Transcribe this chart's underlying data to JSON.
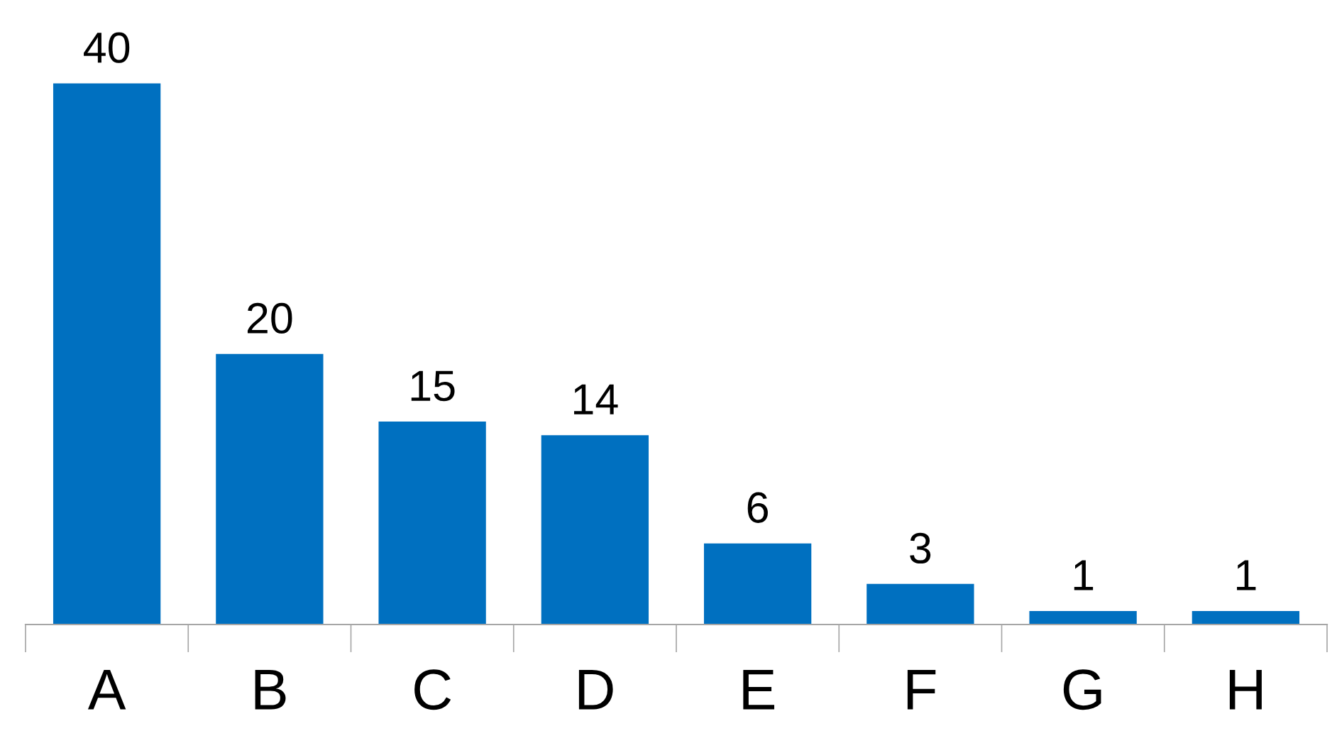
{
  "chart_data": {
    "type": "bar",
    "categories": [
      "A",
      "B",
      "C",
      "D",
      "E",
      "F",
      "G",
      "H"
    ],
    "values": [
      40,
      20,
      15,
      14,
      6,
      3,
      1,
      1
    ],
    "color": "#0070c0",
    "data_labels": true,
    "grid": false,
    "legend": false
  }
}
